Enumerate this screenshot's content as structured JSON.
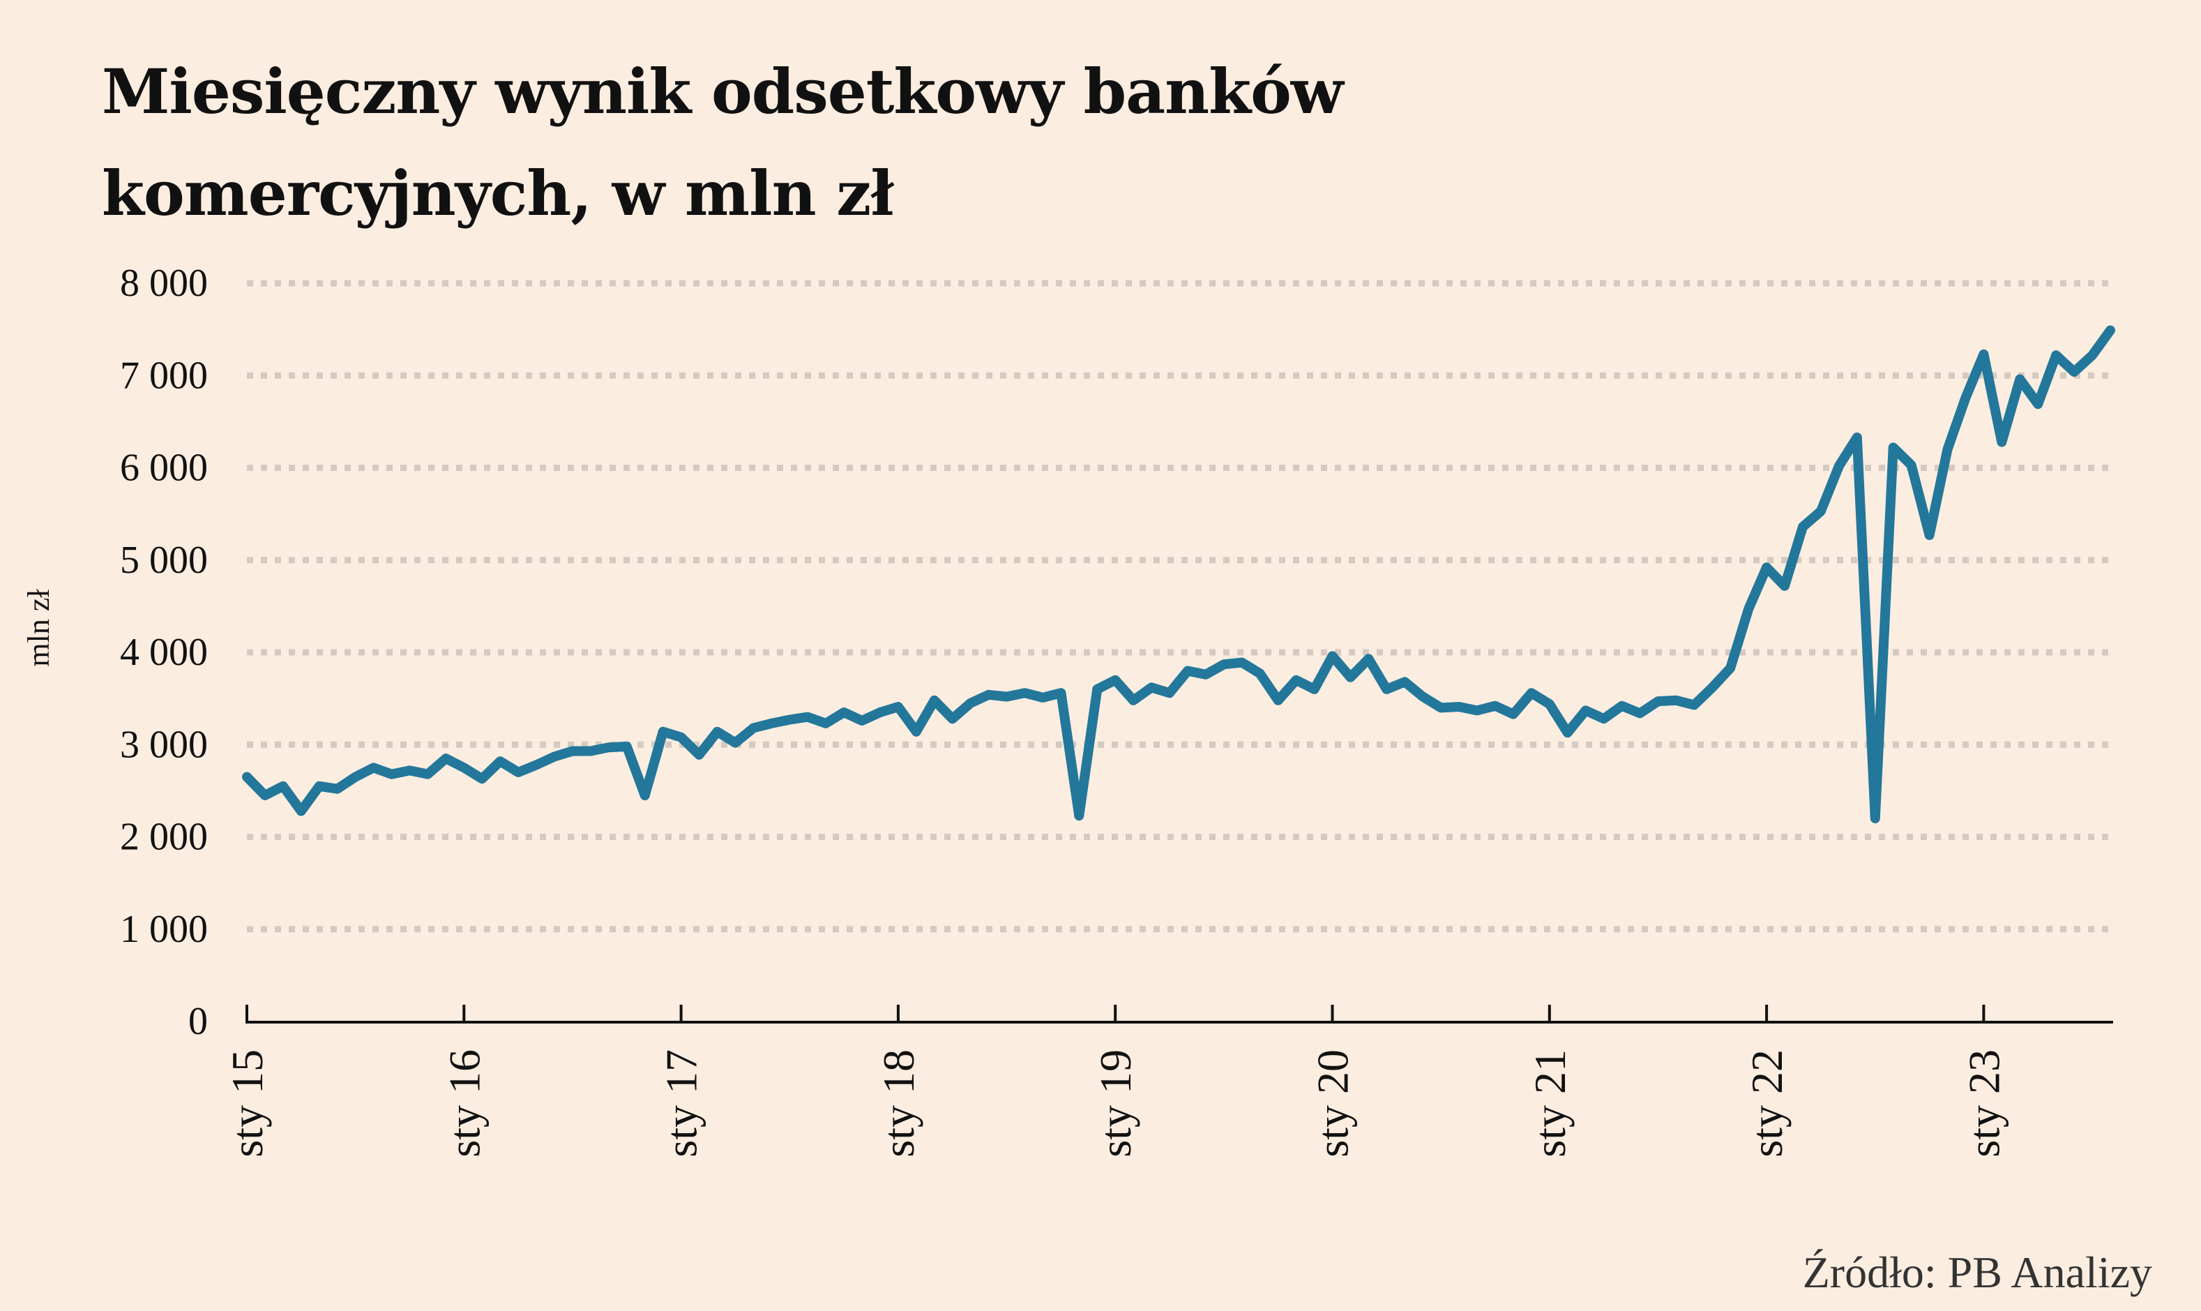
{
  "title": "Miesięczny wynik odsetkowy banków\nkomercyjnych, w mln zł",
  "source": "Źródło: PB Analizy",
  "colors": {
    "background": "#fbede0",
    "line": "#23779a",
    "grid": "#d4cac2",
    "axis": "#111111"
  },
  "chart_data": {
    "type": "line",
    "title": "Miesięczny wynik odsetkowy banków komercyjnych, w mln zł",
    "ylabel": "mln zł",
    "xlabel": "",
    "ylim": [
      0,
      8000
    ],
    "yticks": [
      0,
      1000,
      2000,
      3000,
      4000,
      5000,
      6000,
      7000,
      8000
    ],
    "ytick_labels": [
      "0",
      "1 000",
      "2 000",
      "3 000",
      "4 000",
      "5 000",
      "6 000",
      "7 000",
      "8 000"
    ],
    "xticks": [
      "sty 15",
      "sty 16",
      "sty 17",
      "sty 18",
      "sty 19",
      "sty 20",
      "sty 21",
      "sty 22",
      "sty 23"
    ],
    "x_start": "sty 15",
    "x_end": "lip 23",
    "grid": true,
    "grid_style": "horizontal dotted",
    "legend": "none",
    "series": [
      {
        "values": [
          2650,
          2450,
          2550,
          2280,
          2550,
          2520,
          2650,
          2750,
          2680,
          2720,
          2680,
          2850,
          2750,
          2630,
          2820,
          2700,
          2780,
          2870,
          2930,
          2930,
          2970,
          2980,
          2450,
          3140,
          3080,
          2890,
          3140,
          3020,
          3180,
          3230,
          3270,
          3300,
          3230,
          3350,
          3260,
          3350,
          3410,
          3140,
          3480,
          3280,
          3450,
          3540,
          3520,
          3560,
          3510,
          3560,
          2230,
          3600,
          3700,
          3480,
          3620,
          3560,
          3800,
          3760,
          3870,
          3890,
          3770,
          3480,
          3700,
          3600,
          3960,
          3730,
          3930,
          3600,
          3680,
          3520,
          3400,
          3410,
          3370,
          3420,
          3330,
          3560,
          3440,
          3130,
          3370,
          3280,
          3420,
          3340,
          3470,
          3480,
          3430,
          3620,
          3830,
          4470,
          4920,
          4720,
          5360,
          5530,
          6020,
          6330,
          2200,
          6220,
          6030,
          5270,
          6200,
          6760,
          7230,
          6280,
          6960,
          6690,
          7220,
          7040,
          7220,
          7490
        ]
      }
    ]
  }
}
